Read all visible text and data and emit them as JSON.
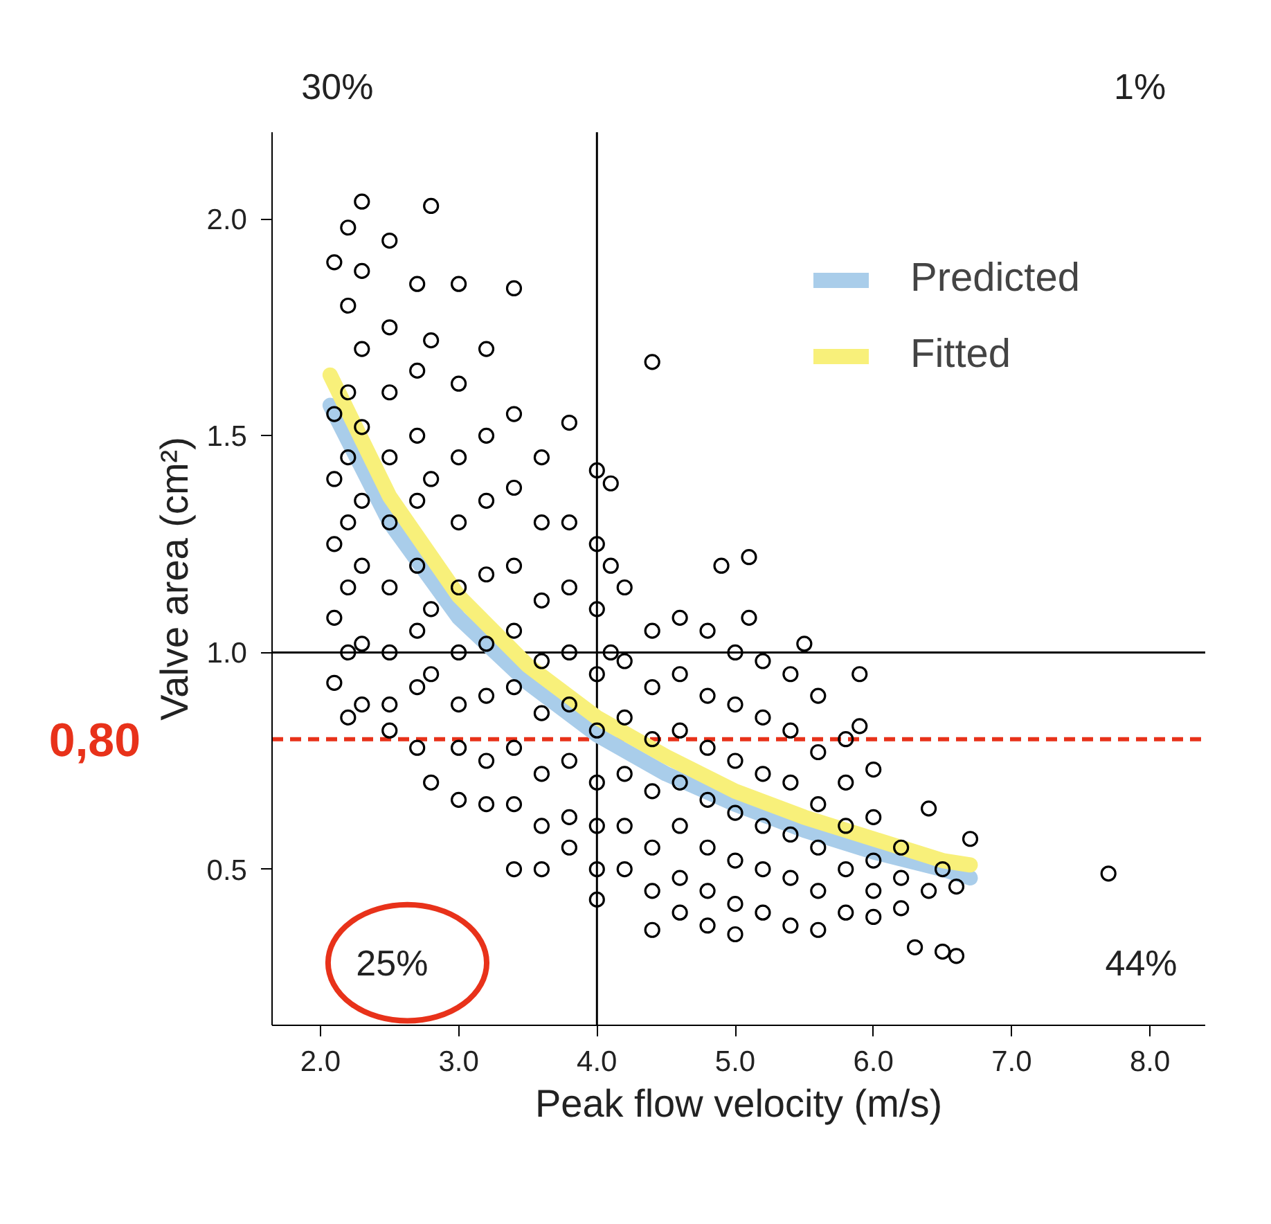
{
  "chart_data": {
    "type": "scatter",
    "xlabel": "Peak flow velocity (m/s)",
    "ylabel": "Valve area (cm²)",
    "xlim": [
      1.65,
      8.4
    ],
    "ylim": [
      0.14,
      2.2
    ],
    "xticks": [
      {
        "value": 2,
        "label": "2.0"
      },
      {
        "value": 3,
        "label": "3.0"
      },
      {
        "value": 4,
        "label": "4.0"
      },
      {
        "value": 5,
        "label": "5.0"
      },
      {
        "value": 6,
        "label": "6.0"
      },
      {
        "value": 7,
        "label": "7.0"
      },
      {
        "value": 8,
        "label": "8.0"
      }
    ],
    "yticks": [
      0.5,
      {
        "value": 1,
        "label": "1.0"
      },
      1.5,
      {
        "value": 2,
        "label": "2.0"
      }
    ],
    "legend": "top right",
    "series": [
      {
        "type": "scatter",
        "marker": "circle",
        "color": "#000000",
        "x": [
          2.1,
          2.1,
          2.1,
          2.1,
          2.1,
          2.1,
          2.2,
          2.2,
          2.2,
          2.2,
          2.2,
          2.2,
          2.2,
          2.2,
          2.3,
          2.3,
          2.3,
          2.3,
          2.3,
          2.3,
          2.3,
          2.3,
          2.5,
          2.5,
          2.5,
          2.5,
          2.5,
          2.5,
          2.5,
          2.5,
          2.5,
          2.7,
          2.7,
          2.7,
          2.7,
          2.7,
          2.7,
          2.7,
          2.7,
          2.8,
          2.8,
          2.8,
          2.8,
          2.8,
          2.8,
          3.0,
          3.0,
          3.0,
          3.0,
          3.0,
          3.0,
          3.0,
          3.0,
          3.0,
          3.2,
          3.2,
          3.2,
          3.2,
          3.2,
          3.2,
          3.2,
          3.2,
          3.4,
          3.4,
          3.4,
          3.4,
          3.4,
          3.4,
          3.4,
          3.4,
          3.4,
          3.6,
          3.6,
          3.6,
          3.6,
          3.6,
          3.6,
          3.6,
          3.6,
          3.8,
          3.8,
          3.8,
          3.8,
          3.8,
          3.8,
          3.8,
          3.8,
          4.0,
          4.0,
          4.0,
          4.0,
          4.0,
          4.0,
          4.0,
          4.0,
          4.0,
          4.1,
          4.1,
          4.1,
          4.2,
          4.2,
          4.2,
          4.2,
          4.2,
          4.2,
          4.4,
          4.4,
          4.4,
          4.4,
          4.4,
          4.4,
          4.4,
          4.4,
          4.6,
          4.6,
          4.6,
          4.6,
          4.6,
          4.6,
          4.6,
          4.8,
          4.8,
          4.8,
          4.8,
          4.8,
          4.8,
          4.8,
          4.9,
          5.0,
          5.0,
          5.0,
          5.0,
          5.0,
          5.0,
          5.0,
          5.1,
          5.1,
          5.2,
          5.2,
          5.2,
          5.2,
          5.2,
          5.2,
          5.4,
          5.4,
          5.4,
          5.4,
          5.4,
          5.4,
          5.5,
          5.6,
          5.6,
          5.6,
          5.6,
          5.6,
          5.6,
          5.8,
          5.8,
          5.8,
          5.8,
          5.8,
          5.9,
          5.9,
          6.0,
          6.0,
          6.0,
          6.0,
          6.0,
          6.2,
          6.2,
          6.2,
          6.4,
          6.4,
          6.3,
          6.5,
          6.5,
          6.6,
          6.6,
          6.7,
          7.7
        ],
        "values": [
          1.9,
          1.55,
          1.4,
          1.25,
          1.08,
          0.93,
          1.98,
          1.8,
          1.6,
          1.45,
          1.3,
          1.15,
          1.0,
          0.85,
          2.04,
          1.88,
          1.7,
          1.52,
          1.35,
          1.2,
          1.02,
          0.88,
          1.95,
          1.75,
          1.6,
          1.45,
          1.3,
          1.15,
          1.0,
          0.88,
          0.82,
          1.85,
          1.65,
          1.5,
          1.35,
          1.2,
          1.05,
          0.92,
          0.78,
          2.03,
          1.72,
          1.4,
          1.1,
          0.95,
          0.7,
          1.85,
          1.62,
          1.45,
          1.3,
          1.15,
          1.0,
          0.88,
          0.78,
          0.66,
          1.7,
          1.5,
          1.35,
          1.18,
          1.02,
          0.9,
          0.75,
          0.65,
          1.84,
          1.55,
          1.38,
          1.2,
          1.05,
          0.92,
          0.78,
          0.65,
          0.5,
          1.45,
          1.3,
          1.12,
          0.98,
          0.86,
          0.72,
          0.6,
          0.5,
          1.53,
          1.3,
          1.15,
          1.0,
          0.88,
          0.75,
          0.62,
          0.55,
          1.42,
          1.25,
          1.1,
          0.95,
          0.82,
          0.7,
          0.6,
          0.5,
          0.43,
          1.39,
          1.2,
          1.0,
          1.15,
          0.98,
          0.85,
          0.72,
          0.6,
          0.5,
          1.67,
          1.05,
          0.92,
          0.8,
          0.68,
          0.55,
          0.45,
          0.36,
          1.08,
          0.95,
          0.82,
          0.7,
          0.6,
          0.48,
          0.4,
          1.05,
          0.9,
          0.78,
          0.66,
          0.55,
          0.45,
          0.37,
          1.2,
          1.0,
          0.88,
          0.75,
          0.63,
          0.52,
          0.42,
          0.35,
          1.22,
          1.08,
          0.98,
          0.85,
          0.72,
          0.6,
          0.5,
          0.4,
          0.95,
          0.82,
          0.7,
          0.58,
          0.48,
          0.37,
          1.02,
          0.9,
          0.77,
          0.65,
          0.55,
          0.45,
          0.36,
          0.8,
          0.7,
          0.6,
          0.5,
          0.4,
          0.83,
          0.95,
          0.73,
          0.62,
          0.52,
          0.45,
          0.39,
          0.55,
          0.48,
          0.41,
          0.64,
          0.45,
          0.32,
          0.31,
          0.5,
          0.3,
          0.46,
          0.57,
          0.49
        ]
      },
      {
        "type": "line",
        "name": "Predicted",
        "color": "#a9cdea",
        "x": [
          2.07,
          2.5,
          3.0,
          3.5,
          4.0,
          4.5,
          5.0,
          5.5,
          6.0,
          6.5,
          6.7
        ],
        "values": [
          1.57,
          1.3,
          1.08,
          0.93,
          0.81,
          0.72,
          0.65,
          0.59,
          0.54,
          0.5,
          0.48
        ]
      },
      {
        "type": "line",
        "name": "Fitted",
        "color": "#f8f07a",
        "x": [
          2.07,
          2.5,
          3.0,
          3.5,
          4.0,
          4.5,
          5.0,
          5.5,
          6.0,
          6.5,
          6.7
        ],
        "values": [
          1.64,
          1.36,
          1.13,
          0.97,
          0.85,
          0.76,
          0.68,
          0.62,
          0.57,
          0.52,
          0.51
        ]
      }
    ],
    "ref_lines": [
      {
        "axis": "x",
        "value": 4,
        "color": "#000000"
      },
      {
        "axis": "y",
        "value": 1,
        "color": "#000000"
      },
      {
        "axis": "y",
        "value": 0.8,
        "label": "0,80",
        "color": "#e8321a",
        "line_style": "dashed"
      }
    ],
    "annotations": [
      "30%",
      "1%",
      "25%",
      "44%"
    ]
  }
}
